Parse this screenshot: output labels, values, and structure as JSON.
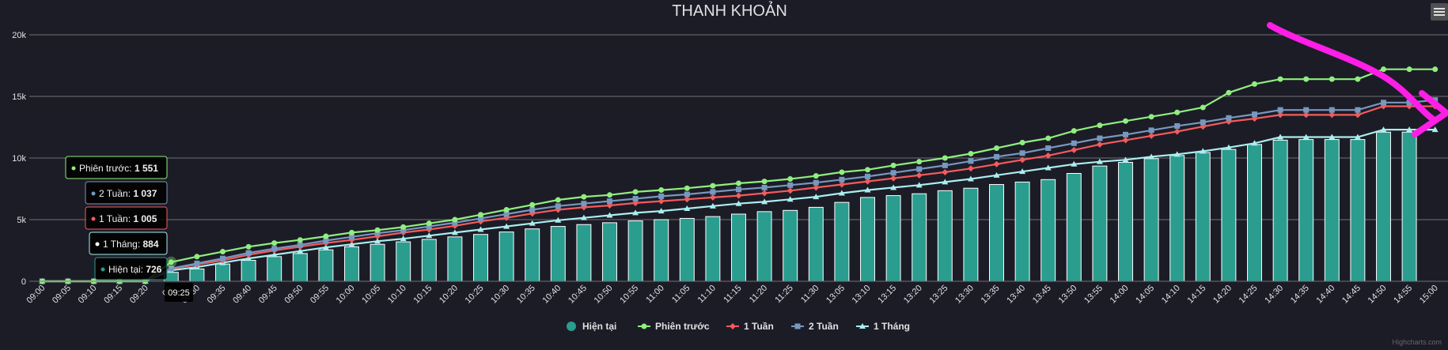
{
  "chart_data": {
    "type": "bar+line",
    "title": "THANH KHOẢN",
    "xlabel": "",
    "ylabel": "",
    "ylim": [
      0,
      20000
    ],
    "yticks": [
      0,
      5000,
      10000,
      15000,
      20000
    ],
    "ytick_labels": [
      "0",
      "5k",
      "10k",
      "15k",
      "20k"
    ],
    "grid": true,
    "legend_position": "bottom-center",
    "categories": [
      "09:00",
      "09:05",
      "09:10",
      "09:15",
      "09:20",
      "09:25",
      "09:30",
      "09:35",
      "09:40",
      "09:45",
      "09:50",
      "09:55",
      "10:00",
      "10:05",
      "10:10",
      "10:15",
      "10:20",
      "10:25",
      "10:30",
      "10:35",
      "10:40",
      "10:45",
      "10:50",
      "10:55",
      "11:00",
      "11:05",
      "11:10",
      "11:15",
      "11:20",
      "11:25",
      "11:30",
      "13:05",
      "13:10",
      "13:15",
      "13:20",
      "13:25",
      "13:30",
      "13:35",
      "13:40",
      "13:45",
      "13:50",
      "13:55",
      "14:00",
      "14:05",
      "14:10",
      "14:15",
      "14:20",
      "14:25",
      "14:30",
      "14:35",
      "14:40",
      "14:45",
      "14:50",
      "14:55",
      "15:00"
    ],
    "visible_category_labels": [
      "09:00",
      "09:05",
      "09:10",
      "09:15",
      "09:20",
      "09:",
      "09:30",
      "09:35",
      "09:40",
      "09:45",
      "09:50",
      "09:55",
      "10:00",
      "10:05",
      "10:10",
      "10:15",
      "10:20",
      "10:25",
      "10:30",
      "10:35",
      "10:40",
      "10:45",
      "10:50",
      "10:55",
      "11:00",
      "11:05",
      "11:10",
      "11:15",
      "11:20",
      "11:25",
      "11:30",
      "13:05",
      "13:10",
      "13:15",
      "13:20",
      "13:25",
      "13:30",
      "13:35",
      "13:40",
      "13:45",
      "13:50",
      "13:55",
      "14:00",
      "14:05",
      "14:10",
      "14:15",
      "14:20",
      "14:25",
      "14:30",
      "14:35",
      "14:40",
      "14:45",
      "14:50",
      "14:55",
      "15:00"
    ],
    "series": [
      {
        "name": "Hiện tại",
        "kind": "bar",
        "color": "#2a9d8f",
        "values": [
          0,
          0,
          0,
          0,
          0,
          726,
          1000,
          1400,
          1700,
          2000,
          2250,
          2550,
          2800,
          3000,
          3200,
          3400,
          3600,
          3800,
          4000,
          4250,
          4450,
          4600,
          4750,
          4900,
          5000,
          5100,
          5250,
          5450,
          5650,
          5750,
          6000,
          6400,
          6800,
          6950,
          7100,
          7350,
          7550,
          7850,
          8050,
          8250,
          8750,
          9350,
          9650,
          9950,
          10200,
          10450,
          10700,
          11100,
          11450,
          11500,
          11500,
          11500,
          12100,
          12100,
          null
        ]
      },
      {
        "name": "Phiên trước",
        "kind": "line",
        "color": "#90ee7e",
        "marker": "circle",
        "values": [
          0,
          0,
          0,
          0,
          0,
          1551,
          2000,
          2400,
          2800,
          3100,
          3350,
          3650,
          3950,
          4150,
          4400,
          4700,
          5000,
          5400,
          5800,
          6200,
          6600,
          6850,
          7000,
          7250,
          7400,
          7550,
          7750,
          7950,
          8100,
          8300,
          8550,
          8850,
          9050,
          9400,
          9700,
          10000,
          10350,
          10800,
          11250,
          11600,
          12200,
          12650,
          13000,
          13350,
          13700,
          14100,
          15300,
          16000,
          16400,
          16400,
          16400,
          16400,
          17200,
          17200,
          17200
        ]
      },
      {
        "name": "1 Tuần",
        "kind": "line",
        "color": "#f45b5b",
        "marker": "diamond",
        "values": [
          0,
          0,
          0,
          0,
          0,
          1005,
          1350,
          1700,
          2150,
          2500,
          2800,
          3100,
          3350,
          3650,
          3950,
          4200,
          4500,
          4850,
          5150,
          5500,
          5800,
          6000,
          6150,
          6350,
          6500,
          6650,
          6800,
          6950,
          7150,
          7350,
          7600,
          7850,
          8100,
          8350,
          8600,
          8850,
          9150,
          9500,
          9850,
          10200,
          10650,
          11100,
          11450,
          11800,
          12150,
          12550,
          12950,
          13200,
          13500,
          13500,
          13500,
          13500,
          14200,
          14200,
          14200
        ]
      },
      {
        "name": "2 Tuần",
        "kind": "line",
        "color": "#7798bf",
        "marker": "square",
        "values": [
          0,
          0,
          0,
          0,
          0,
          1037,
          1450,
          1850,
          2300,
          2650,
          2950,
          3300,
          3600,
          3900,
          4150,
          4450,
          4750,
          5100,
          5450,
          5800,
          6100,
          6300,
          6500,
          6700,
          6900,
          7050,
          7250,
          7450,
          7600,
          7800,
          8000,
          8250,
          8500,
          8800,
          9100,
          9400,
          9750,
          10100,
          10400,
          10800,
          11200,
          11600,
          11900,
          12250,
          12600,
          12900,
          13250,
          13550,
          13900,
          13900,
          13900,
          13900,
          14500,
          14500,
          14700
        ]
      },
      {
        "name": "1 Tháng",
        "kind": "line",
        "color": "#aaeeee",
        "marker": "triangle",
        "values": [
          0,
          0,
          0,
          0,
          0,
          884,
          1150,
          1500,
          1850,
          2150,
          2450,
          2750,
          3000,
          3250,
          3450,
          3700,
          3950,
          4200,
          4450,
          4700,
          4950,
          5150,
          5350,
          5550,
          5700,
          5900,
          6100,
          6300,
          6450,
          6650,
          6850,
          7150,
          7400,
          7600,
          7800,
          8050,
          8300,
          8600,
          8900,
          9200,
          9500,
          9700,
          9850,
          10100,
          10300,
          10550,
          10850,
          11200,
          11700,
          11700,
          11700,
          11700,
          12300,
          12300,
          12300
        ]
      }
    ]
  },
  "tooltip": {
    "x_label": "09:25",
    "rows": [
      {
        "name": "Phiên trước",
        "value": "1 551",
        "color": "#90ee7e"
      },
      {
        "name": "2 Tuần",
        "value": "1 037",
        "color": "#7798bf"
      },
      {
        "name": "1 Tuần",
        "value": "1 005",
        "color": "#f45b5b"
      },
      {
        "name": "1 Tháng",
        "value": "884",
        "color": "#ffffff"
      },
      {
        "name": "Hiện tại",
        "value": "726",
        "color": "#2a9d8f"
      }
    ]
  },
  "credits": "Highcharts.com",
  "annotation": {
    "type": "arrow",
    "color": "#ff1ee6"
  },
  "menu_icon": "hamburger-menu-icon"
}
